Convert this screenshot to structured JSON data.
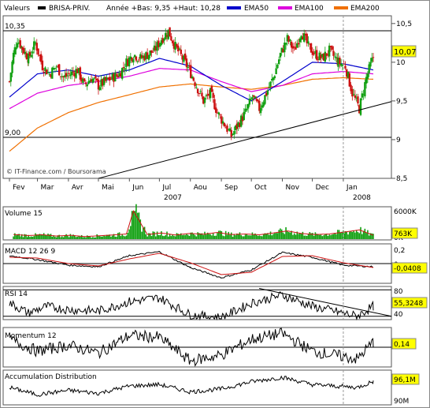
{
  "header": {
    "valeurs_label": "Valeurs",
    "ticker": "BRISA-PRIV.",
    "range_text": "Année +Bas: 9,35 +Haut: 10,28",
    "credit": "© IT-Finance.com / Boursorama"
  },
  "colors": {
    "candle_up": "#11a011",
    "candle_down": "#cc1111",
    "ema50": "#0000cc",
    "ema100": "#dd00dd",
    "ema200": "#f07000",
    "trendline": "#000000",
    "price_badge": "#ffff00",
    "volume_bar": "#11a011",
    "volume_ma": "#cc1111",
    "signal": "#cc1111"
  },
  "chart_data": [
    {
      "type": "candlestick",
      "panel": "price",
      "title": "BRISA-PRIV.",
      "legend": [
        "EMA50",
        "EMA100",
        "EMA200"
      ],
      "legend_placement": "top",
      "months": [
        "Fev",
        "Mar",
        "Avr",
        "Mai",
        "Jun",
        "Jul",
        "Aou",
        "Sep",
        "Oct",
        "Nov",
        "Dec",
        "Jan"
      ],
      "year_labels": [
        "2007",
        "2008"
      ],
      "ylim": [
        8.5,
        10.6
      ],
      "yticks": [
        "10,5",
        "10",
        "9,5",
        "9",
        "8,5"
      ],
      "reference_lines": [
        {
          "label": "10,35",
          "value": 10.35
        },
        {
          "label": "9,00",
          "value": 9.0
        }
      ],
      "last_price_label": "10,07",
      "trendline": {
        "from": {
          "date": "2007-05-01",
          "value": 8.5
        },
        "to": {
          "date": "2008-01-31",
          "value": 9.43
        }
      },
      "price_series": [
        {
          "date": "2007-02-01",
          "value": 9.75
        },
        {
          "date": "2007-02-05",
          "value": 10.1
        },
        {
          "date": "2007-02-09",
          "value": 10.3
        },
        {
          "date": "2007-02-14",
          "value": 10.18
        },
        {
          "date": "2007-02-20",
          "value": 10.05
        },
        {
          "date": "2007-02-27",
          "value": 10.25
        },
        {
          "date": "2007-03-06",
          "value": 9.95
        },
        {
          "date": "2007-03-13",
          "value": 9.85
        },
        {
          "date": "2007-03-20",
          "value": 9.95
        },
        {
          "date": "2007-03-27",
          "value": 9.8
        },
        {
          "date": "2007-04-03",
          "value": 9.85
        },
        {
          "date": "2007-04-10",
          "value": 9.9
        },
        {
          "date": "2007-04-17",
          "value": 9.7
        },
        {
          "date": "2007-04-24",
          "value": 9.8
        },
        {
          "date": "2007-05-01",
          "value": 9.7
        },
        {
          "date": "2007-05-08",
          "value": 9.75
        },
        {
          "date": "2007-05-15",
          "value": 9.8
        },
        {
          "date": "2007-05-22",
          "value": 9.85
        },
        {
          "date": "2007-05-29",
          "value": 10.0
        },
        {
          "date": "2007-06-05",
          "value": 10.1
        },
        {
          "date": "2007-06-12",
          "value": 10.05
        },
        {
          "date": "2007-06-19",
          "value": 10.1
        },
        {
          "date": "2007-06-26",
          "value": 10.15
        },
        {
          "date": "2007-07-03",
          "value": 10.3
        },
        {
          "date": "2007-07-10",
          "value": 10.4
        },
        {
          "date": "2007-07-17",
          "value": 10.2
        },
        {
          "date": "2007-07-24",
          "value": 10.05
        },
        {
          "date": "2007-07-31",
          "value": 9.9
        },
        {
          "date": "2007-08-07",
          "value": 9.7
        },
        {
          "date": "2007-08-14",
          "value": 9.5
        },
        {
          "date": "2007-08-21",
          "value": 9.6
        },
        {
          "date": "2007-08-28",
          "value": 9.35
        },
        {
          "date": "2007-09-04",
          "value": 9.2
        },
        {
          "date": "2007-09-11",
          "value": 9.05
        },
        {
          "date": "2007-09-18",
          "value": 9.2
        },
        {
          "date": "2007-09-25",
          "value": 9.35
        },
        {
          "date": "2007-10-02",
          "value": 9.55
        },
        {
          "date": "2007-10-09",
          "value": 9.4
        },
        {
          "date": "2007-10-16",
          "value": 9.6
        },
        {
          "date": "2007-10-23",
          "value": 9.8
        },
        {
          "date": "2007-10-30",
          "value": 10.1
        },
        {
          "date": "2007-11-06",
          "value": 10.3
        },
        {
          "date": "2007-11-13",
          "value": 10.15
        },
        {
          "date": "2007-11-20",
          "value": 10.4
        },
        {
          "date": "2007-11-27",
          "value": 10.2
        },
        {
          "date": "2007-12-04",
          "value": 10.1
        },
        {
          "date": "2007-12-11",
          "value": 10.05
        },
        {
          "date": "2007-12-18",
          "value": 10.15
        },
        {
          "date": "2007-12-27",
          "value": 10.0
        },
        {
          "date": "2008-01-03",
          "value": 9.95
        },
        {
          "date": "2008-01-10",
          "value": 9.6
        },
        {
          "date": "2008-01-17",
          "value": 9.4
        },
        {
          "date": "2008-01-24",
          "value": 9.8
        },
        {
          "date": "2008-01-31",
          "value": 10.07
        }
      ],
      "series": [
        {
          "name": "EMA50",
          "values": [
            {
              "date": "2007-02-01",
              "value": 9.55
            },
            {
              "date": "2007-03-01",
              "value": 9.85
            },
            {
              "date": "2007-04-01",
              "value": 9.9
            },
            {
              "date": "2007-05-01",
              "value": 9.82
            },
            {
              "date": "2007-06-01",
              "value": 9.9
            },
            {
              "date": "2007-07-01",
              "value": 10.05
            },
            {
              "date": "2007-08-01",
              "value": 9.95
            },
            {
              "date": "2007-09-01",
              "value": 9.7
            },
            {
              "date": "2007-10-01",
              "value": 9.5
            },
            {
              "date": "2007-11-01",
              "value": 9.75
            },
            {
              "date": "2007-12-01",
              "value": 10.0
            },
            {
              "date": "2008-01-01",
              "value": 9.98
            },
            {
              "date": "2008-01-31",
              "value": 9.9
            }
          ]
        },
        {
          "name": "EMA100",
          "values": [
            {
              "date": "2007-02-01",
              "value": 9.4
            },
            {
              "date": "2007-03-01",
              "value": 9.6
            },
            {
              "date": "2007-04-01",
              "value": 9.7
            },
            {
              "date": "2007-05-01",
              "value": 9.75
            },
            {
              "date": "2007-06-01",
              "value": 9.82
            },
            {
              "date": "2007-07-01",
              "value": 9.92
            },
            {
              "date": "2007-08-01",
              "value": 9.9
            },
            {
              "date": "2007-09-01",
              "value": 9.75
            },
            {
              "date": "2007-10-01",
              "value": 9.62
            },
            {
              "date": "2007-11-01",
              "value": 9.7
            },
            {
              "date": "2007-12-01",
              "value": 9.85
            },
            {
              "date": "2008-01-01",
              "value": 9.88
            },
            {
              "date": "2008-01-31",
              "value": 9.85
            }
          ]
        },
        {
          "name": "EMA200",
          "values": [
            {
              "date": "2007-02-01",
              "value": 8.85
            },
            {
              "date": "2007-03-01",
              "value": 9.15
            },
            {
              "date": "2007-04-01",
              "value": 9.35
            },
            {
              "date": "2007-05-01",
              "value": 9.48
            },
            {
              "date": "2007-06-01",
              "value": 9.58
            },
            {
              "date": "2007-07-01",
              "value": 9.68
            },
            {
              "date": "2007-08-01",
              "value": 9.72
            },
            {
              "date": "2007-09-01",
              "value": 9.68
            },
            {
              "date": "2007-10-01",
              "value": 9.65
            },
            {
              "date": "2007-11-01",
              "value": 9.7
            },
            {
              "date": "2007-12-01",
              "value": 9.78
            },
            {
              "date": "2008-01-01",
              "value": 9.8
            },
            {
              "date": "2008-01-31",
              "value": 9.78
            }
          ]
        }
      ]
    },
    {
      "type": "bar",
      "panel": "volume",
      "title": "Volume 15",
      "last_value_label": "763K",
      "ylim": [
        0,
        6000000
      ],
      "yticks": [
        "6000K",
        "0K"
      ],
      "values": [
        {
          "date": "2007-02-05",
          "value": 900000
        },
        {
          "date": "2007-02-20",
          "value": 700000
        },
        {
          "date": "2007-03-06",
          "value": 850000
        },
        {
          "date": "2007-03-20",
          "value": 600000
        },
        {
          "date": "2007-04-03",
          "value": 750000
        },
        {
          "date": "2007-04-17",
          "value": 500000
        },
        {
          "date": "2007-05-01",
          "value": 650000
        },
        {
          "date": "2007-05-15",
          "value": 800000
        },
        {
          "date": "2007-05-29",
          "value": 1000000
        },
        {
          "date": "2007-06-05",
          "value": 5500000
        },
        {
          "date": "2007-06-19",
          "value": 900000
        },
        {
          "date": "2007-07-03",
          "value": 1200000
        },
        {
          "date": "2007-07-17",
          "value": 800000
        },
        {
          "date": "2007-07-31",
          "value": 1100000
        },
        {
          "date": "2007-08-14",
          "value": 950000
        },
        {
          "date": "2007-08-28",
          "value": 1300000
        },
        {
          "date": "2007-09-11",
          "value": 900000
        },
        {
          "date": "2007-09-25",
          "value": 1000000
        },
        {
          "date": "2007-10-09",
          "value": 850000
        },
        {
          "date": "2007-10-23",
          "value": 1200000
        },
        {
          "date": "2007-11-06",
          "value": 1600000
        },
        {
          "date": "2007-11-20",
          "value": 1100000
        },
        {
          "date": "2007-12-04",
          "value": 900000
        },
        {
          "date": "2007-12-18",
          "value": 1000000
        },
        {
          "date": "2008-01-03",
          "value": 1400000
        },
        {
          "date": "2008-01-17",
          "value": 1800000
        },
        {
          "date": "2008-01-31",
          "value": 763000
        }
      ]
    },
    {
      "type": "line",
      "panel": "macd",
      "title": "MACD 12 26 9",
      "last_value_label": "-0,0408",
      "ylim": [
        -0.25,
        0.25
      ],
      "yticks": [
        "0,2",
        "0"
      ],
      "series": [
        {
          "name": "MACD",
          "values": [
            {
              "date": "2007-02-01",
              "value": 0.1
            },
            {
              "date": "2007-03-01",
              "value": 0.05
            },
            {
              "date": "2007-04-01",
              "value": -0.02
            },
            {
              "date": "2007-05-01",
              "value": -0.04
            },
            {
              "date": "2007-06-01",
              "value": 0.1
            },
            {
              "date": "2007-07-01",
              "value": 0.15
            },
            {
              "date": "2007-08-01",
              "value": -0.05
            },
            {
              "date": "2007-09-01",
              "value": -0.18
            },
            {
              "date": "2007-10-01",
              "value": -0.08
            },
            {
              "date": "2007-11-01",
              "value": 0.14
            },
            {
              "date": "2007-12-01",
              "value": 0.08
            },
            {
              "date": "2008-01-01",
              "value": -0.02
            },
            {
              "date": "2008-01-31",
              "value": -0.04
            }
          ]
        },
        {
          "name": "Signal",
          "values": [
            {
              "date": "2007-02-01",
              "value": 0.08
            },
            {
              "date": "2007-03-01",
              "value": 0.07
            },
            {
              "date": "2007-04-01",
              "value": 0.0
            },
            {
              "date": "2007-05-01",
              "value": -0.03
            },
            {
              "date": "2007-06-01",
              "value": 0.06
            },
            {
              "date": "2007-07-01",
              "value": 0.13
            },
            {
              "date": "2007-08-01",
              "value": 0.01
            },
            {
              "date": "2007-09-01",
              "value": -0.14
            },
            {
              "date": "2007-10-01",
              "value": -0.11
            },
            {
              "date": "2007-11-01",
              "value": 0.09
            },
            {
              "date": "2007-12-01",
              "value": 0.1
            },
            {
              "date": "2008-01-01",
              "value": 0.01
            },
            {
              "date": "2008-01-31",
              "value": -0.05
            }
          ]
        }
      ]
    },
    {
      "type": "line",
      "panel": "rsi",
      "title": "RSI 14",
      "last_value_label": "55,3248",
      "ylim": [
        35,
        85
      ],
      "yticks": [
        "80",
        "40"
      ],
      "values": [
        {
          "date": "2007-02-01",
          "value": 60
        },
        {
          "date": "2007-02-20",
          "value": 45
        },
        {
          "date": "2007-03-10",
          "value": 55
        },
        {
          "date": "2007-04-01",
          "value": 50
        },
        {
          "date": "2007-05-01",
          "value": 48
        },
        {
          "date": "2007-06-01",
          "value": 62
        },
        {
          "date": "2007-07-01",
          "value": 68
        },
        {
          "date": "2007-08-01",
          "value": 42
        },
        {
          "date": "2007-09-01",
          "value": 38
        },
        {
          "date": "2007-10-01",
          "value": 60
        },
        {
          "date": "2007-11-01",
          "value": 72
        },
        {
          "date": "2007-12-01",
          "value": 55
        },
        {
          "date": "2008-01-15",
          "value": 40
        },
        {
          "date": "2008-01-31",
          "value": 55.3
        }
      ],
      "trendline": {
        "from": {
          "date": "2007-10-01",
          "value": 82
        },
        "to": {
          "date": "2008-01-31",
          "value": 43
        }
      }
    },
    {
      "type": "line",
      "panel": "momentum",
      "title": "Momentum 12",
      "last_value_label": "0,14",
      "ylim": [
        -0.5,
        0.5
      ],
      "yticks": [
        "0"
      ],
      "values": [
        {
          "date": "2007-02-01",
          "value": 0.2
        },
        {
          "date": "2007-03-01",
          "value": -0.1
        },
        {
          "date": "2007-04-01",
          "value": 0.05
        },
        {
          "date": "2007-05-01",
          "value": -0.15
        },
        {
          "date": "2007-06-01",
          "value": 0.3
        },
        {
          "date": "2007-07-01",
          "value": 0.25
        },
        {
          "date": "2007-08-01",
          "value": -0.35
        },
        {
          "date": "2007-09-01",
          "value": -0.2
        },
        {
          "date": "2007-10-01",
          "value": 0.2
        },
        {
          "date": "2007-11-01",
          "value": 0.35
        },
        {
          "date": "2007-12-01",
          "value": -0.1
        },
        {
          "date": "2008-01-15",
          "value": -0.3
        },
        {
          "date": "2008-01-31",
          "value": 0.14
        }
      ]
    },
    {
      "type": "line",
      "panel": "accumulation",
      "title": "Accumulation Distribution",
      "last_value_label": "96,1M",
      "ylim": [
        88000000,
        100000000
      ],
      "yticks": [
        "90M"
      ],
      "values": [
        {
          "date": "2007-02-01",
          "value": 94000000
        },
        {
          "date": "2007-03-01",
          "value": 91500000
        },
        {
          "date": "2007-04-01",
          "value": 93000000
        },
        {
          "date": "2007-05-01",
          "value": 92000000
        },
        {
          "date": "2007-06-01",
          "value": 94500000
        },
        {
          "date": "2007-07-01",
          "value": 95000000
        },
        {
          "date": "2007-08-01",
          "value": 92500000
        },
        {
          "date": "2007-09-01",
          "value": 93500000
        },
        {
          "date": "2007-10-01",
          "value": 96000000
        },
        {
          "date": "2007-11-01",
          "value": 97500000
        },
        {
          "date": "2007-12-01",
          "value": 95000000
        },
        {
          "date": "2008-01-15",
          "value": 94000000
        },
        {
          "date": "2008-01-31",
          "value": 96100000
        }
      ]
    }
  ]
}
